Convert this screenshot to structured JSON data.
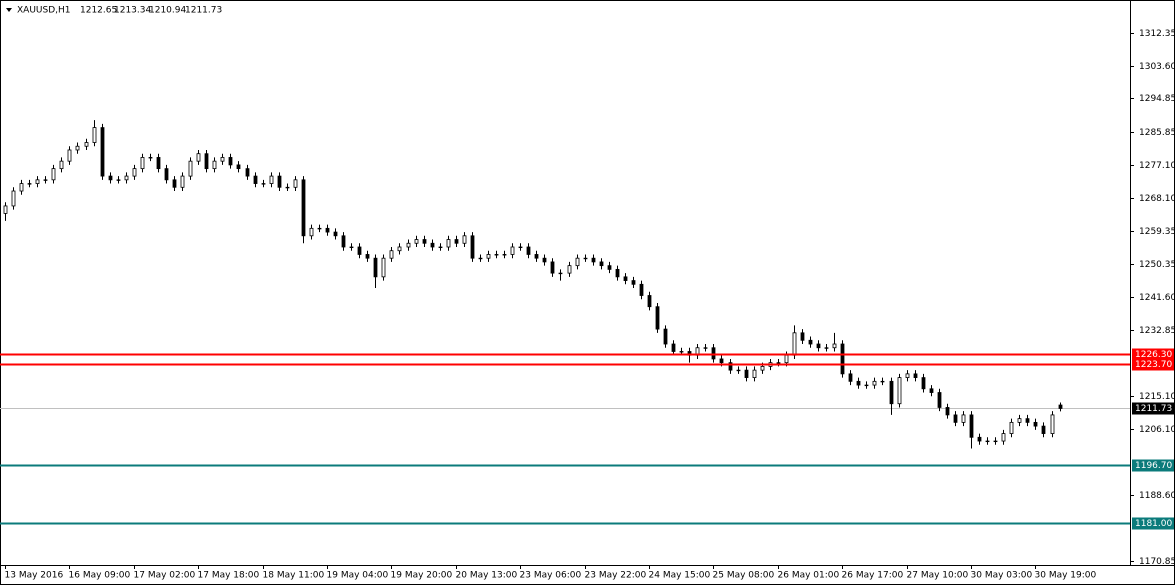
{
  "chart_data": {
    "type": "candlestick",
    "title": "XAUUSD,H1",
    "categories": [
      "13 May 2016",
      null,
      null,
      null,
      null,
      null,
      null,
      null,
      "16 May 09:00",
      null,
      null,
      null,
      null,
      null,
      null,
      null,
      "17 May 02:00",
      null,
      null,
      null,
      null,
      null,
      null,
      null,
      "17 May 18:00",
      null,
      null,
      null,
      null,
      null,
      null,
      null,
      "18 May 11:00",
      null,
      null,
      null,
      null,
      null,
      null,
      null,
      "19 May 04:00",
      null,
      null,
      null,
      null,
      null,
      null,
      null,
      "19 May 20:00",
      null,
      null,
      null,
      null,
      null,
      null,
      null,
      "20 May 13:00",
      null,
      null,
      null,
      null,
      null,
      null,
      null,
      "23 May 06:00",
      null,
      null,
      null,
      null,
      null,
      null,
      null,
      "23 May 22:00",
      null,
      null,
      null,
      null,
      null,
      null,
      null,
      "24 May 15:00",
      null,
      null,
      null,
      null,
      null,
      null,
      null,
      "25 May 08:00",
      null,
      null,
      null,
      null,
      null,
      null,
      null,
      "26 May 01:00",
      null,
      null,
      null,
      null,
      null,
      null,
      null,
      "26 May 17:00",
      null,
      null,
      null,
      null,
      null,
      null,
      null,
      "27 May 10:00",
      null,
      null,
      null,
      null,
      null,
      null,
      null,
      "30 May 03:00",
      null,
      null,
      null,
      null,
      null,
      null,
      null,
      "30 May 19:00",
      null,
      null,
      null
    ],
    "open": [
      1264,
      1266,
      1270,
      1272,
      1272,
      1273,
      1273,
      1276,
      1278,
      1281,
      1282,
      1283,
      1287,
      1274,
      1273,
      1273,
      1274,
      1276,
      1279,
      1279,
      1276,
      1273,
      1271,
      1274,
      1278,
      1280,
      1276,
      1278,
      1279,
      1277,
      1276,
      1274,
      1272,
      1272,
      1274,
      1271,
      1271,
      1273,
      1258,
      1260,
      1260,
      1259,
      1258,
      1255,
      1255,
      1253,
      1252,
      1247,
      1252,
      1254,
      1255,
      1256,
      1257,
      1256,
      1255,
      1255,
      1257,
      1256,
      1258,
      1252,
      1252,
      1253,
      1253,
      1253,
      1255,
      1255,
      1253,
      1252,
      1251,
      1248,
      1248,
      1250,
      1252,
      1252,
      1251,
      1250,
      1249,
      1247,
      1246,
      1245,
      1242,
      1239,
      1233,
      1229,
      1227,
      1227,
      1226,
      1228,
      1228,
      1225,
      1224,
      1222,
      1222,
      1220,
      1222,
      1223,
      1224,
      1224,
      1226,
      1232,
      1230,
      1229,
      1228,
      1228,
      1229,
      1221,
      1219,
      1218,
      1218,
      1219,
      1219,
      1213,
      1220,
      1221,
      1220,
      1217,
      1216,
      1212,
      1210,
      1208,
      1210,
      1204,
      1203,
      1203,
      1203,
      1205,
      1208,
      1209,
      1208,
      1207,
      1205,
      1212.65
    ],
    "high": [
      1267,
      1271,
      1273,
      1273,
      1274,
      1274,
      1277,
      1279,
      1282,
      1283,
      1284,
      1289,
      1288,
      1275,
      1274,
      1275,
      1277,
      1280,
      1280,
      1280,
      1277,
      1274,
      1275,
      1279,
      1281,
      1281,
      1279,
      1280,
      1280,
      1278,
      1277,
      1275,
      1273,
      1275,
      1275,
      1272,
      1274,
      1274,
      1261,
      1261,
      1261,
      1260,
      1259,
      1256,
      1256,
      1254,
      1253,
      1253,
      1255,
      1256,
      1257,
      1258,
      1258,
      1257,
      1256,
      1258,
      1258,
      1259,
      1259,
      1253,
      1254,
      1254,
      1254,
      1256,
      1256,
      1256,
      1254,
      1253,
      1252,
      1249,
      1251,
      1253,
      1253,
      1253,
      1252,
      1251,
      1250,
      1248,
      1247,
      1246,
      1243,
      1240,
      1234,
      1230,
      1228,
      1228,
      1229,
      1229,
      1229,
      1226,
      1225,
      1223,
      1223,
      1223,
      1224,
      1225,
      1225,
      1227,
      1234,
      1233,
      1231,
      1230,
      1229,
      1232,
      1230,
      1222,
      1220,
      1219,
      1220,
      1220,
      1220,
      1221,
      1222,
      1222,
      1221,
      1218,
      1217,
      1213,
      1211,
      1211,
      1211,
      1205,
      1204,
      1204,
      1206,
      1209,
      1210,
      1210,
      1209,
      1208,
      1211,
      1213.34
    ],
    "low": [
      1262,
      1265,
      1269,
      1271,
      1271,
      1272,
      1272,
      1275,
      1277,
      1280,
      1281,
      1282,
      1273,
      1272,
      1272,
      1272,
      1273,
      1275,
      1278,
      1275,
      1272,
      1270,
      1270,
      1273,
      1277,
      1275,
      1275,
      1277,
      1276,
      1275,
      1273,
      1271,
      1271,
      1271,
      1270,
      1270,
      1270,
      1256,
      1257,
      1259,
      1258,
      1257,
      1254,
      1254,
      1252,
      1251,
      1244,
      1246,
      1251,
      1253,
      1254,
      1255,
      1255,
      1254,
      1254,
      1254,
      1255,
      1255,
      1251,
      1251,
      1251,
      1252,
      1252,
      1252,
      1254,
      1252,
      1251,
      1250,
      1247,
      1246,
      1247,
      1249,
      1251,
      1250,
      1249,
      1248,
      1246,
      1245,
      1244,
      1241,
      1238,
      1232,
      1228,
      1226,
      1226,
      1224,
      1225,
      1227,
      1224,
      1223,
      1221,
      1221,
      1219,
      1219,
      1221,
      1222,
      1223,
      1223,
      1225,
      1229,
      1228,
      1227,
      1227,
      1227,
      1220,
      1218,
      1217,
      1217,
      1217,
      1218,
      1210,
      1212,
      1219,
      1219,
      1216,
      1215,
      1211,
      1209,
      1207,
      1207,
      1201,
      1202,
      1202,
      1202,
      1202,
      1204,
      1207,
      1207,
      1206,
      1204,
      1204,
      1210.94
    ],
    "close": [
      1266,
      1270,
      1272,
      1272,
      1273,
      1273,
      1276,
      1278,
      1281,
      1282,
      1283,
      1287,
      1274,
      1273,
      1273,
      1274,
      1276,
      1279,
      1279,
      1276,
      1273,
      1271,
      1274,
      1278,
      1280,
      1276,
      1278,
      1279,
      1277,
      1276,
      1274,
      1272,
      1272,
      1274,
      1271,
      1271,
      1273,
      1258,
      1260,
      1260,
      1259,
      1258,
      1255,
      1255,
      1253,
      1252,
      1247,
      1252,
      1254,
      1255,
      1256,
      1257,
      1256,
      1255,
      1255,
      1257,
      1256,
      1258,
      1252,
      1252,
      1253,
      1253,
      1253,
      1255,
      1255,
      1253,
      1252,
      1251,
      1248,
      1248,
      1250,
      1252,
      1252,
      1251,
      1250,
      1249,
      1247,
      1246,
      1245,
      1242,
      1239,
      1233,
      1229,
      1227,
      1227,
      1226,
      1228,
      1228,
      1225,
      1224,
      1222,
      1222,
      1220,
      1222,
      1223,
      1224,
      1224,
      1226,
      1232,
      1230,
      1229,
      1228,
      1228,
      1229,
      1221,
      1219,
      1218,
      1218,
      1219,
      1219,
      1213,
      1220,
      1221,
      1220,
      1217,
      1216,
      1212,
      1210,
      1208,
      1210,
      1204,
      1203,
      1203,
      1203,
      1205,
      1208,
      1209,
      1208,
      1207,
      1205,
      1210,
      1211.73
    ],
    "ylim": [
      1169.78,
      1321.19
    ],
    "yticks": [
      1312.35,
      {
        "value": 1303.6,
        "label": "1303.60"
      },
      1294.85,
      1285.85,
      {
        "value": 1277.1,
        "label": "1277.10"
      },
      {
        "value": 1268.1,
        "label": "1268.10"
      },
      1259.35,
      1250.35,
      {
        "value": 1241.6,
        "label": "1241.60"
      },
      1232.85,
      {
        "value": 1215.1,
        "label": "1215.10"
      },
      {
        "value": 1206.1,
        "label": "1206.10"
      },
      {
        "value": 1188.6,
        "label": "1188.60"
      },
      1170.85
    ],
    "levels": [
      {
        "value": 1226.3,
        "label": "1226.30",
        "color": "#ff0000"
      },
      {
        "value": 1223.7,
        "label": "1223.70",
        "color": "#ff0000"
      },
      {
        "value": 1196.7,
        "label": "1196.70",
        "color": "#0b7b7b"
      },
      {
        "value": 1181,
        "label": "1181.00",
        "color": "#0b7b7b"
      }
    ],
    "bull_color": "#ffffff",
    "bear_color": "#000000",
    "bid_color": "#c0c0c0"
  }
}
